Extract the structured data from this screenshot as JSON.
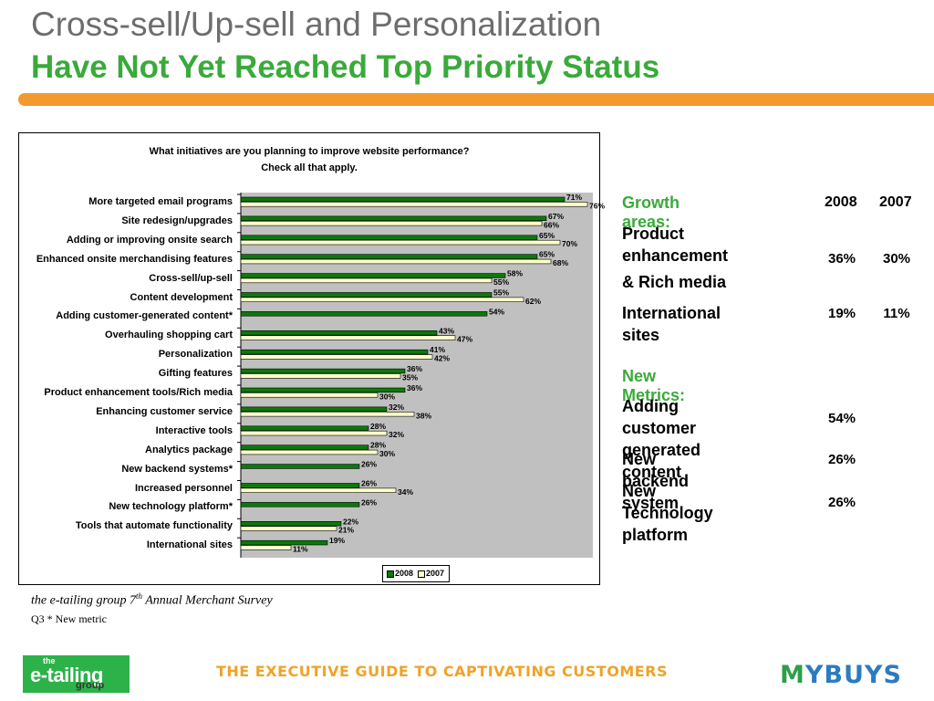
{
  "header": {
    "title_line1": "Cross-sell/Up-sell and Personalization",
    "title_line2": "Have Not Yet  Reached Top Priority Status"
  },
  "colors": {
    "accent_orange": "#f29a2e",
    "title_green": "#3aaa3a",
    "series_2008": "#0a7a0a",
    "series_2007": "#ffffcc",
    "plot_background": "#c0c0c0"
  },
  "chart_data": {
    "type": "bar",
    "orientation": "horizontal",
    "title": "What initiatives are you planning to improve website performance?",
    "subtitle": "Check all that apply.",
    "xlim": [
      0,
      80
    ],
    "grid": false,
    "legend_position": "bottom-right",
    "categories": [
      "More targeted email programs",
      "Site redesign/upgrades",
      "Adding or improving onsite search",
      "Enhanced onsite merchandising features",
      "Cross-sell/up-sell",
      "Content development",
      "Adding customer-generated content*",
      "Overhauling shopping cart",
      "Personalization",
      "Gifting features",
      "Product enhancement tools/Rich media",
      "Enhancing customer service",
      "Interactive tools",
      "Analytics package",
      "New backend systems*",
      "Increased personnel",
      "New technology platform*",
      "Tools that automate functionality",
      "International sites"
    ],
    "series": [
      {
        "name": "2008",
        "values": [
          71,
          67,
          65,
          65,
          58,
          55,
          54,
          43,
          41,
          36,
          36,
          32,
          28,
          28,
          26,
          26,
          26,
          22,
          19
        ]
      },
      {
        "name": "2007",
        "values": [
          76,
          66,
          70,
          68,
          55,
          62,
          null,
          47,
          42,
          35,
          30,
          38,
          32,
          30,
          null,
          34,
          null,
          21,
          11
        ]
      }
    ]
  },
  "growth": {
    "heading": "Growth areas:",
    "col_2008": "2008",
    "col_2007": "2007",
    "rows": [
      {
        "label_lines": [
          "Product",
          "enhancement",
          "& Rich media"
        ],
        "v2008": "36%",
        "v2007": "30%"
      },
      {
        "label_lines": [
          "International sites"
        ],
        "v2008": "19%",
        "v2007": "11%"
      }
    ]
  },
  "new_metrics": {
    "heading": "New Metrics:",
    "rows": [
      {
        "label_lines": [
          "Adding customer",
          "generated content"
        ],
        "v2008": "54%"
      },
      {
        "label_lines": [
          "New backend system"
        ],
        "v2008": "26%"
      },
      {
        "label_lines": [
          "New Technology",
          "platform"
        ],
        "v2008": "26%"
      }
    ]
  },
  "footer": {
    "source_pre": "the  e-tailing group 7",
    "source_sup": "th",
    "source_post": " Annual Merchant Survey",
    "note": "Q3 * New metric",
    "logo_left_the": "the",
    "logo_left_main": "e-tailing",
    "logo_left_group": "group",
    "tagline": "THE EXECUTIVE GUIDE TO CAPTIVATING CUSTOMERS",
    "logo_right_m": "M",
    "logo_right_rest": "YBUYS"
  }
}
